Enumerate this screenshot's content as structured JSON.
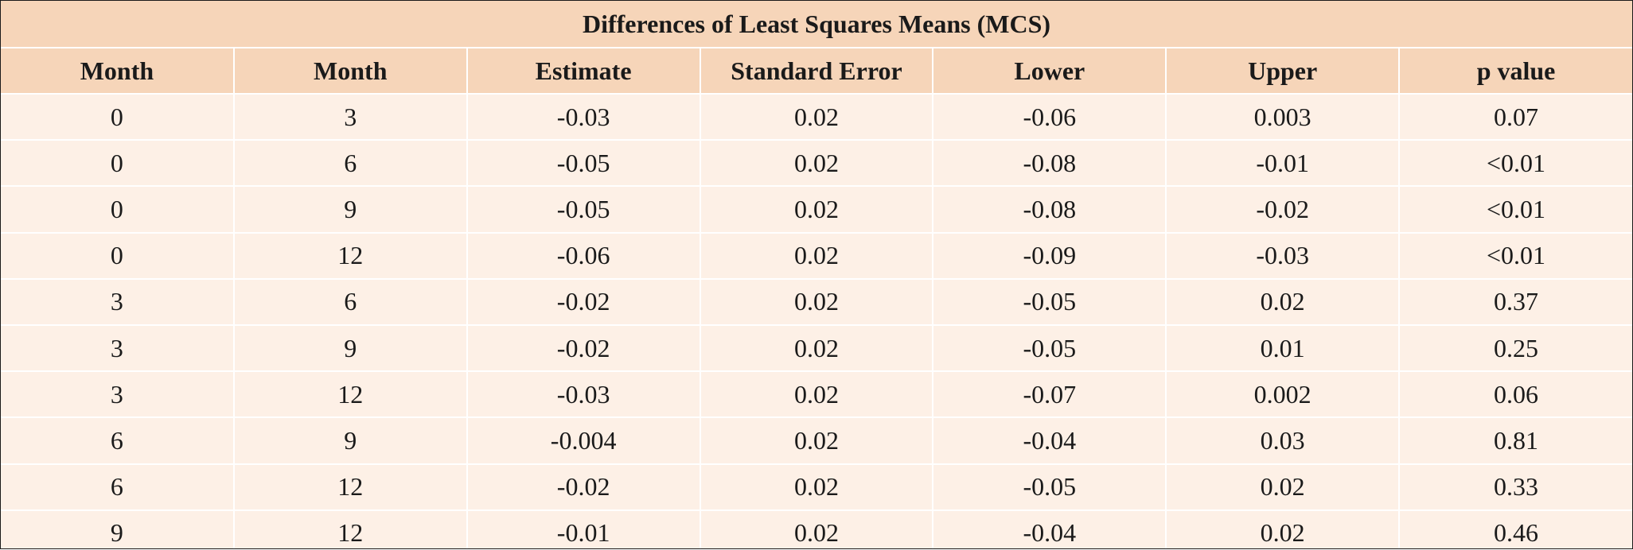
{
  "table": {
    "title": "Differences of Least Squares Means (MCS)",
    "columns": [
      "Month",
      "Month",
      "Estimate",
      "Standard Error",
      "Lower",
      "Upper",
      "p value"
    ],
    "rows": [
      [
        "0",
        "3",
        "-0.03",
        "0.02",
        "-0.06",
        "0.003",
        "0.07"
      ],
      [
        "0",
        "6",
        "-0.05",
        "0.02",
        "-0.08",
        "-0.01",
        "<0.01"
      ],
      [
        "0",
        "9",
        "-0.05",
        "0.02",
        "-0.08",
        "-0.02",
        "<0.01"
      ],
      [
        "0",
        "12",
        "-0.06",
        "0.02",
        "-0.09",
        "-0.03",
        "<0.01"
      ],
      [
        "3",
        "6",
        "-0.02",
        "0.02",
        "-0.05",
        "0.02",
        "0.37"
      ],
      [
        "3",
        "9",
        "-0.02",
        "0.02",
        "-0.05",
        "0.01",
        "0.25"
      ],
      [
        "3",
        "12",
        "-0.03",
        "0.02",
        "-0.07",
        "0.002",
        "0.06"
      ],
      [
        "6",
        "9",
        "-0.004",
        "0.02",
        "-0.04",
        "0.03",
        "0.81"
      ],
      [
        "6",
        "12",
        "-0.02",
        "0.02",
        "-0.05",
        "0.02",
        "0.33"
      ],
      [
        "9",
        "12",
        "-0.01",
        "0.02",
        "-0.04",
        "0.02",
        "0.46"
      ]
    ]
  },
  "colors": {
    "header_bg": "#f6d5b9",
    "body_bg": "#fdf0e6",
    "border": "#1a1a1a"
  }
}
